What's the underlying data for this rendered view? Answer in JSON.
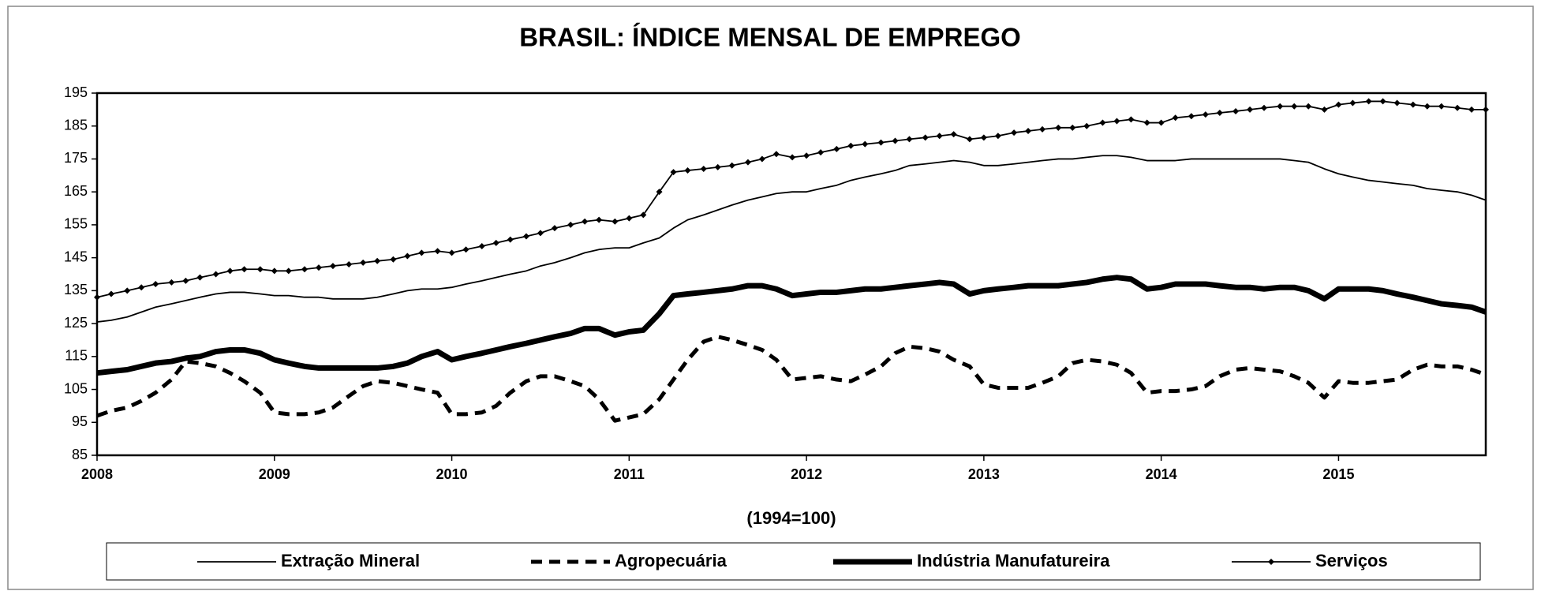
{
  "chart_data": {
    "type": "line",
    "title": "BRASIL: ÍNDICE MENSAL DE EMPREGO",
    "x_label": "(1994=100)",
    "xlim": [
      2008,
      2015.83
    ],
    "xticks": [
      2008,
      2009,
      2010,
      2011,
      2012,
      2013,
      2014,
      2015
    ],
    "ylim": [
      85,
      195
    ],
    "yticks": [
      85,
      95,
      105,
      115,
      125,
      135,
      145,
      155,
      165,
      175,
      185,
      195
    ],
    "legend": "bottom",
    "x": [
      2008,
      2008.08,
      2008.17,
      2008.25,
      2008.33,
      2008.42,
      2008.5,
      2008.58,
      2008.67,
      2008.75,
      2008.83,
      2008.92,
      2009,
      2009.08,
      2009.17,
      2009.25,
      2009.33,
      2009.42,
      2009.5,
      2009.58,
      2009.67,
      2009.75,
      2009.83,
      2009.92,
      2010,
      2010.08,
      2010.17,
      2010.25,
      2010.33,
      2010.42,
      2010.5,
      2010.58,
      2010.67,
      2010.75,
      2010.83,
      2010.92,
      2011,
      2011.08,
      2011.17,
      2011.25,
      2011.33,
      2011.42,
      2011.5,
      2011.58,
      2011.67,
      2011.75,
      2011.83,
      2011.92,
      2012,
      2012.08,
      2012.17,
      2012.25,
      2012.33,
      2012.42,
      2012.5,
      2012.58,
      2012.67,
      2012.75,
      2012.83,
      2012.92,
      2013,
      2013.08,
      2013.17,
      2013.25,
      2013.33,
      2013.42,
      2013.5,
      2013.58,
      2013.67,
      2013.75,
      2013.83,
      2013.92,
      2014,
      2014.08,
      2014.17,
      2014.25,
      2014.33,
      2014.42,
      2014.5,
      2014.58,
      2014.67,
      2014.75,
      2014.83,
      2014.92,
      2015,
      2015.08,
      2015.17,
      2015.25,
      2015.33,
      2015.42,
      2015.5,
      2015.58,
      2015.67,
      2015.75,
      2015.83
    ],
    "series": [
      {
        "name": "Extração Mineral",
        "color": "#000000",
        "style": "solid",
        "values": [
          125.5,
          126,
          127,
          128.5,
          130,
          131,
          132,
          133,
          134,
          134.5,
          134.5,
          134,
          133.5,
          133.5,
          133,
          133,
          132.5,
          132.5,
          132.5,
          133,
          134,
          135,
          135.5,
          135.5,
          136,
          137,
          138,
          139,
          140,
          141,
          142.5,
          143.5,
          145,
          146.5,
          147.5,
          148,
          148,
          149.5,
          151,
          154,
          156.5,
          158,
          159.5,
          161,
          162.5,
          163.5,
          164.5,
          165,
          165,
          166,
          167,
          168.5,
          169.5,
          170.5,
          171.5,
          173,
          173.5,
          174,
          174.5,
          174,
          173,
          173,
          173.5,
          174,
          174.5,
          175,
          175,
          175.5,
          176,
          176,
          175.5,
          174.5,
          174.5,
          174.5,
          175,
          175,
          175,
          175,
          175,
          175,
          175,
          174.5,
          174,
          172,
          170.5,
          169.5,
          168.5,
          168,
          167.5,
          167,
          166,
          165.5,
          165,
          164,
          162.5
        ]
      },
      {
        "name": "Agropecuária",
        "color": "#000000",
        "style": "dashed",
        "values": [
          97,
          98.5,
          99.5,
          101.5,
          104,
          108,
          113.5,
          113,
          112,
          110,
          107.5,
          104,
          98,
          97.5,
          97.5,
          98,
          99.5,
          103,
          106,
          107.5,
          107,
          106,
          105,
          104,
          97.5,
          97.5,
          98,
          100,
          104,
          107.5,
          109,
          109,
          107.5,
          106,
          102,
          95.5,
          96.5,
          97.5,
          102,
          108,
          114,
          119.5,
          121,
          120,
          118.5,
          117,
          114,
          108,
          108.5,
          109,
          108,
          107.5,
          109.5,
          112,
          116,
          118,
          117.5,
          116.5,
          114,
          112,
          106.5,
          105.5,
          105.5,
          105.5,
          107,
          109,
          113,
          114,
          113.5,
          112.5,
          110,
          104,
          104.5,
          104.5,
          105,
          106,
          109,
          111,
          111.5,
          111,
          110.5,
          109,
          107,
          102.5,
          107.5,
          107,
          107,
          107.5,
          108,
          111,
          112.5,
          112,
          112,
          111,
          109.5
        ]
      },
      {
        "name": "Indústria Manufatureira",
        "color": "#000000",
        "style": "thick",
        "values": [
          110,
          110.5,
          111,
          112,
          113,
          113.5,
          114.5,
          115,
          116.5,
          117,
          117,
          116,
          114,
          113,
          112,
          111.5,
          111.5,
          111.5,
          111.5,
          111.5,
          112,
          113,
          115,
          116.5,
          114,
          115,
          116,
          117,
          118,
          119,
          120,
          121,
          122,
          123.5,
          123.5,
          121.5,
          122.5,
          123,
          128,
          133.5,
          134,
          134.5,
          135,
          135.5,
          136.5,
          136.5,
          135.5,
          133.5,
          134,
          134.5,
          134.5,
          135,
          135.5,
          135.5,
          136,
          136.5,
          137,
          137.5,
          137,
          134,
          135,
          135.5,
          136,
          136.5,
          136.5,
          136.5,
          137,
          137.5,
          138.5,
          139,
          138.5,
          135.5,
          136,
          137,
          137,
          137,
          136.5,
          136,
          136,
          135.5,
          136,
          136,
          135,
          132.5,
          135.5,
          135.5,
          135.5,
          135,
          134,
          133,
          132,
          131,
          130.5,
          130,
          128.5
        ]
      },
      {
        "name": "Serviços",
        "color": "#000000",
        "style": "markers",
        "values": [
          133,
          134,
          135,
          136,
          137,
          137.5,
          138,
          139,
          140,
          141,
          141.5,
          141.5,
          141,
          141,
          141.5,
          142,
          142.5,
          143,
          143.5,
          144,
          144.5,
          145.5,
          146.5,
          147,
          146.5,
          147.5,
          148.5,
          149.5,
          150.5,
          151.5,
          152.5,
          154,
          155,
          156,
          156.5,
          156,
          157,
          158,
          165,
          171,
          171.5,
          172,
          172.5,
          173,
          174,
          175,
          176.5,
          175.5,
          176,
          177,
          178,
          179,
          179.5,
          180,
          180.5,
          181,
          181.5,
          182,
          182.5,
          181,
          181.5,
          182,
          183,
          183.5,
          184,
          184.5,
          184.5,
          185,
          186,
          186.5,
          187,
          186,
          186,
          187.5,
          188,
          188.5,
          189,
          189.5,
          190,
          190.5,
          191,
          191,
          191,
          190,
          191.5,
          192,
          192.5,
          192.5,
          192,
          191.5,
          191,
          191,
          190.5,
          190,
          190
        ]
      }
    ]
  }
}
